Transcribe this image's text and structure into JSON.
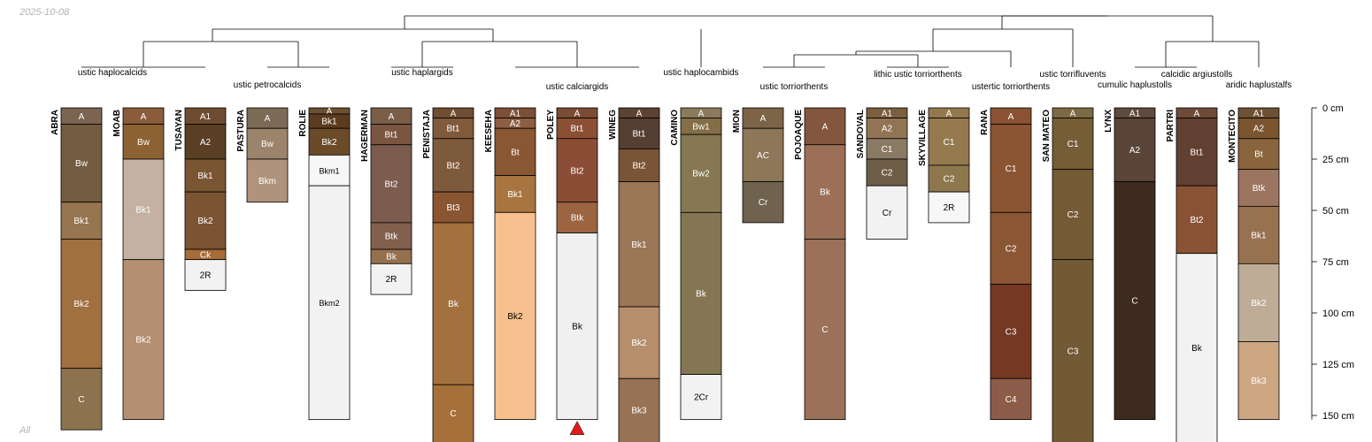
{
  "header": {
    "date": "2025-10-08",
    "footer_label": "All"
  },
  "colors": {
    "line": "#000000",
    "missing_marker": "#e31a1c"
  },
  "depth_axis": {
    "max_cm": 152,
    "ticks": [
      0,
      25,
      50,
      75,
      100,
      125,
      150
    ],
    "unit": "cm"
  },
  "profiles": [
    {
      "name": "ABRA",
      "horizons": [
        {
          "name": "A",
          "top": 0,
          "bottom": 8,
          "color": "#7b6450"
        },
        {
          "name": "Bw",
          "top": 8,
          "bottom": 46,
          "color": "#735b40"
        },
        {
          "name": "Bk1",
          "top": 46,
          "bottom": 64,
          "color": "#96754f"
        },
        {
          "name": "Bk2",
          "top": 64,
          "bottom": 127,
          "color": "#a0703e"
        },
        {
          "name": "C",
          "top": 127,
          "bottom": 157,
          "color": "#8d724f"
        }
      ]
    },
    {
      "name": "MOAB",
      "horizons": [
        {
          "name": "A",
          "top": 0,
          "bottom": 8,
          "color": "#8a5c3c"
        },
        {
          "name": "Bw",
          "top": 8,
          "bottom": 25,
          "color": "#8c6232"
        },
        {
          "name": "Bk1",
          "top": 25,
          "bottom": 74,
          "color": "#c4b1a1"
        },
        {
          "name": "Bk2",
          "top": 74,
          "bottom": 152,
          "color": "#b58f72"
        }
      ]
    },
    {
      "name": "TUSAYAN",
      "horizons": [
        {
          "name": "A1",
          "top": 0,
          "bottom": 8,
          "color": "#6f4c31"
        },
        {
          "name": "A2",
          "top": 8,
          "bottom": 25,
          "color": "#5a3f24"
        },
        {
          "name": "Bk1",
          "top": 25,
          "bottom": 41,
          "color": "#7a5532"
        },
        {
          "name": "Bk2",
          "top": 41,
          "bottom": 69,
          "color": "#7b5434"
        },
        {
          "name": "Ck",
          "top": 69,
          "bottom": 74,
          "color": "#a66c39"
        },
        {
          "name": "2R",
          "top": 74,
          "bottom": 89,
          "color": "#f2f2f2"
        }
      ]
    },
    {
      "name": "PASTURA",
      "horizons": [
        {
          "name": "A",
          "top": 0,
          "bottom": 10,
          "color": "#7b6a55"
        },
        {
          "name": "Bw",
          "top": 10,
          "bottom": 25,
          "color": "#9b846b"
        },
        {
          "name": "Bkm",
          "top": 25,
          "bottom": 46,
          "color": "#b0937c"
        }
      ]
    },
    {
      "name": "ROLIE",
      "horizons": [
        {
          "name": "A",
          "top": 0,
          "bottom": 3,
          "color": "#6c5032"
        },
        {
          "name": "Bk1",
          "top": 3,
          "bottom": 10,
          "color": "#5b3c1f"
        },
        {
          "name": "Bk2",
          "top": 10,
          "bottom": 23,
          "color": "#6b4a2a"
        },
        {
          "name": "Bkm1",
          "top": 23,
          "bottom": 38,
          "color": "#f7f7f7"
        },
        {
          "name": "Bkm2",
          "top": 38,
          "bottom": 152,
          "color": "#f2f2f2"
        }
      ]
    },
    {
      "name": "HAGERMAN",
      "horizons": [
        {
          "name": "A",
          "top": 0,
          "bottom": 8,
          "color": "#7b5e47"
        },
        {
          "name": "Bt1",
          "top": 8,
          "bottom": 18,
          "color": "#7a5542"
        },
        {
          "name": "Bt2",
          "top": 18,
          "bottom": 56,
          "color": "#7b5c4e"
        },
        {
          "name": "Btk",
          "top": 56,
          "bottom": 69,
          "color": "#83604d"
        },
        {
          "name": "Bk",
          "top": 69,
          "bottom": 76,
          "color": "#94704f"
        },
        {
          "name": "2R",
          "top": 76,
          "bottom": 91,
          "color": "#f2f2f2"
        }
      ]
    },
    {
      "name": "PENISTAJA",
      "horizons": [
        {
          "name": "A",
          "top": 0,
          "bottom": 5,
          "color": "#6f4e32"
        },
        {
          "name": "Bt1",
          "top": 5,
          "bottom": 15,
          "color": "#805a3b"
        },
        {
          "name": "Bt2",
          "top": 15,
          "bottom": 41,
          "color": "#7e5a3c"
        },
        {
          "name": "Bt3",
          "top": 41,
          "bottom": 56,
          "color": "#8a5531"
        },
        {
          "name": "Bk",
          "top": 56,
          "bottom": 135,
          "color": "#a3713e"
        },
        {
          "name": "C",
          "top": 135,
          "bottom": 165,
          "color": "#a6703b"
        }
      ]
    },
    {
      "name": "KEESEHA",
      "horizons": [
        {
          "name": "A1",
          "top": 0,
          "bottom": 5,
          "color": "#7b4f38"
        },
        {
          "name": "A2",
          "top": 5,
          "bottom": 10,
          "color": "#8e5e43"
        },
        {
          "name": "Bt",
          "top": 10,
          "bottom": 33,
          "color": "#8a5733"
        },
        {
          "name": "Bk1",
          "top": 33,
          "bottom": 51,
          "color": "#a8743f"
        },
        {
          "name": "Bk2",
          "top": 51,
          "bottom": 152,
          "color": "#f5c08e"
        }
      ]
    },
    {
      "name": "POLEY",
      "missing_marker": true,
      "horizons": [
        {
          "name": "A",
          "top": 0,
          "bottom": 5,
          "color": "#7a4c34"
        },
        {
          "name": "Bt1",
          "top": 5,
          "bottom": 15,
          "color": "#8b4f34"
        },
        {
          "name": "Bt2",
          "top": 15,
          "bottom": 46,
          "color": "#8c4d37"
        },
        {
          "name": "Btk",
          "top": 46,
          "bottom": 61,
          "color": "#9c6441"
        },
        {
          "name": "Bk",
          "top": 61,
          "bottom": 152,
          "color": "#f0f0f0"
        }
      ]
    },
    {
      "name": "WINEG",
      "horizons": [
        {
          "name": "A",
          "top": 0,
          "bottom": 5,
          "color": "#5b4232"
        },
        {
          "name": "Bt1",
          "top": 5,
          "bottom": 20,
          "color": "#543f32"
        },
        {
          "name": "Bt2",
          "top": 20,
          "bottom": 36,
          "color": "#7a5436"
        },
        {
          "name": "Bk1",
          "top": 36,
          "bottom": 97,
          "color": "#9b7657"
        },
        {
          "name": "Bk2",
          "top": 97,
          "bottom": 132,
          "color": "#b78e6b"
        },
        {
          "name": "Bk3",
          "top": 132,
          "bottom": 165,
          "color": "#987254"
        }
      ]
    },
    {
      "name": "CAMINO",
      "horizons": [
        {
          "name": "A",
          "top": 0,
          "bottom": 5,
          "color": "#8b7a5d"
        },
        {
          "name": "Bw1",
          "top": 5,
          "bottom": 13,
          "color": "#836e47"
        },
        {
          "name": "Bw2",
          "top": 13,
          "bottom": 51,
          "color": "#857853"
        },
        {
          "name": "Bk",
          "top": 51,
          "bottom": 130,
          "color": "#857653"
        },
        {
          "name": "2Cr",
          "top": 130,
          "bottom": 152,
          "color": "#f2f2f2"
        }
      ]
    },
    {
      "name": "MION",
      "horizons": [
        {
          "name": "A",
          "top": 0,
          "bottom": 10,
          "color": "#7d6447"
        },
        {
          "name": "AC",
          "top": 10,
          "bottom": 36,
          "color": "#8e7659"
        },
        {
          "name": "Cr",
          "top": 36,
          "bottom": 56,
          "color": "#6f624e"
        }
      ]
    },
    {
      "name": "POJOAQUE",
      "horizons": [
        {
          "name": "A",
          "top": 0,
          "bottom": 18,
          "color": "#83573e"
        },
        {
          "name": "Bk",
          "top": 18,
          "bottom": 64,
          "color": "#9c7056"
        },
        {
          "name": "C",
          "top": 64,
          "bottom": 152,
          "color": "#9c715a"
        }
      ]
    },
    {
      "name": "SANDOVAL",
      "horizons": [
        {
          "name": "A1",
          "top": 0,
          "bottom": 5,
          "color": "#7a5e3d"
        },
        {
          "name": "A2",
          "top": 5,
          "bottom": 15,
          "color": "#907454"
        },
        {
          "name": "C1",
          "top": 15,
          "bottom": 25,
          "color": "#8a7a64"
        },
        {
          "name": "C2",
          "top": 25,
          "bottom": 38,
          "color": "#6e5e48"
        },
        {
          "name": "Cr",
          "top": 38,
          "bottom": 64,
          "color": "#f2f2f2"
        }
      ]
    },
    {
      "name": "SKYVILLAGE",
      "horizons": [
        {
          "name": "A",
          "top": 0,
          "bottom": 5,
          "color": "#93784e"
        },
        {
          "name": "C1",
          "top": 5,
          "bottom": 28,
          "color": "#957a4f"
        },
        {
          "name": "C2",
          "top": 28,
          "bottom": 41,
          "color": "#8e774d"
        },
        {
          "name": "2R",
          "top": 41,
          "bottom": 56,
          "color": "#f7f7f7"
        }
      ]
    },
    {
      "name": "RANA",
      "horizons": [
        {
          "name": "A",
          "top": 0,
          "bottom": 8,
          "color": "#8a5232"
        },
        {
          "name": "C1",
          "top": 8,
          "bottom": 51,
          "color": "#8b5532"
        },
        {
          "name": "C2",
          "top": 51,
          "bottom": 86,
          "color": "#8b5633"
        },
        {
          "name": "C3",
          "top": 86,
          "bottom": 132,
          "color": "#743823"
        },
        {
          "name": "C4",
          "top": 132,
          "bottom": 152,
          "color": "#8d5c48"
        }
      ]
    },
    {
      "name": "SAN MATEO",
      "horizons": [
        {
          "name": "A",
          "top": 0,
          "bottom": 5,
          "color": "#7d6a45"
        },
        {
          "name": "C1",
          "top": 5,
          "bottom": 30,
          "color": "#755d36"
        },
        {
          "name": "C2",
          "top": 30,
          "bottom": 74,
          "color": "#745a35"
        },
        {
          "name": "C3",
          "top": 74,
          "bottom": 165,
          "color": "#735a36"
        }
      ]
    },
    {
      "name": "LYNX",
      "horizons": [
        {
          "name": "A1",
          "top": 0,
          "bottom": 5,
          "color": "#5f4a3e"
        },
        {
          "name": "A2",
          "top": 5,
          "bottom": 36,
          "color": "#5a4438"
        },
        {
          "name": "C",
          "top": 36,
          "bottom": 152,
          "color": "#3d2b1f"
        }
      ]
    },
    {
      "name": "PARTRI",
      "horizons": [
        {
          "name": "A",
          "top": 0,
          "bottom": 5,
          "color": "#6e4b38"
        },
        {
          "name": "Bt1",
          "top": 5,
          "bottom": 38,
          "color": "#613f31"
        },
        {
          "name": "Bt2",
          "top": 38,
          "bottom": 71,
          "color": "#8a5234"
        },
        {
          "name": "Bk",
          "top": 71,
          "bottom": 165,
          "color": "#f2f2f2"
        }
      ]
    },
    {
      "name": "MONTECITO",
      "horizons": [
        {
          "name": "A1",
          "top": 0,
          "bottom": 5,
          "color": "#6e5135"
        },
        {
          "name": "A2",
          "top": 5,
          "bottom": 15,
          "color": "#7a5530"
        },
        {
          "name": "Bt",
          "top": 15,
          "bottom": 30,
          "color": "#8a643c"
        },
        {
          "name": "Btk",
          "top": 30,
          "bottom": 48,
          "color": "#9c7560"
        },
        {
          "name": "Bk1",
          "top": 48,
          "bottom": 76,
          "color": "#977251"
        },
        {
          "name": "Bk2",
          "top": 76,
          "bottom": 114,
          "color": "#bfac96"
        },
        {
          "name": "Bk3",
          "top": 114,
          "bottom": 152,
          "color": "#cda682"
        }
      ]
    }
  ],
  "classes": [
    {
      "label": "ustic haplocalcids",
      "profiles": [
        0,
        1
      ]
    },
    {
      "label": "ustic petrocalcids",
      "profiles": [
        2,
        3,
        4
      ]
    },
    {
      "label": "ustic haplargids",
      "profiles": [
        5,
        6
      ]
    },
    {
      "label": "ustic calciargids",
      "profiles": [
        7,
        8,
        9
      ]
    },
    {
      "label": "ustic haplocambids",
      "profiles": [
        10
      ]
    },
    {
      "label": "ustic torriorthents",
      "profiles": [
        11,
        12
      ]
    },
    {
      "label": "lithic ustic torriorthents",
      "profiles": [
        13,
        14
      ]
    },
    {
      "label": "ustertic torriorthents",
      "profiles": [
        15
      ]
    },
    {
      "label": "ustic torrifluvents",
      "profiles": [
        16
      ]
    },
    {
      "label": "cumulic haplustolls",
      "profiles": [
        17
      ]
    },
    {
      "label": "calcidic argiustolls",
      "profiles": [
        18
      ]
    },
    {
      "label": "aridic haplustalfs",
      "profiles": [
        19
      ]
    }
  ]
}
